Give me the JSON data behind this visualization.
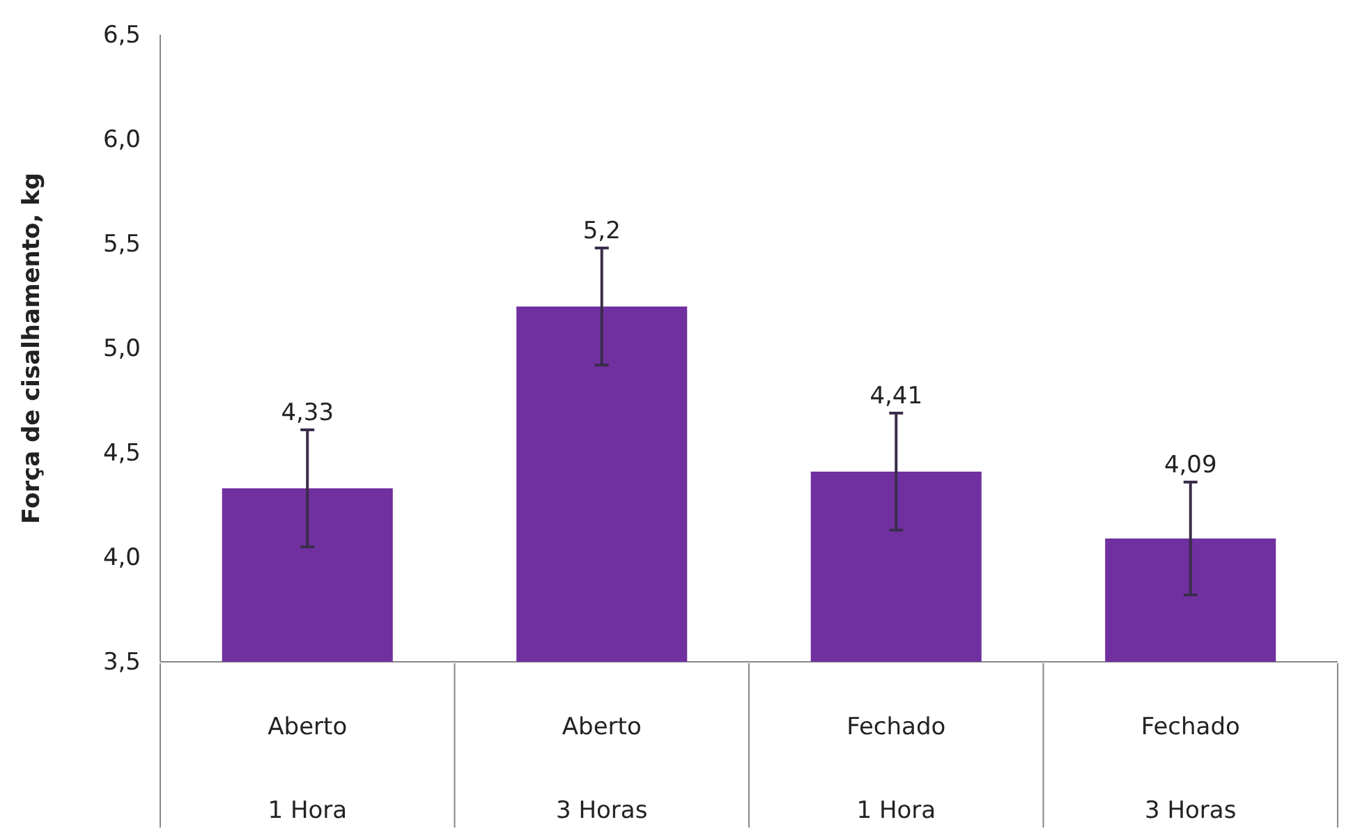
{
  "chart_data": {
    "type": "bar",
    "ylabel": "Força de cisalhamento, kg",
    "categories": [
      "Aberto\n1 Hora",
      "Aberto\n3 Horas",
      "Fechado\n1 Hora",
      "Fechado\n3 Horas"
    ],
    "values": [
      4.33,
      5.2,
      4.41,
      4.09
    ],
    "errors": [
      0.28,
      0.28,
      0.28,
      0.27
    ],
    "value_labels": [
      "4,33",
      "5,2",
      "4,41",
      "4,09"
    ],
    "color": "#7030a0",
    "ylim": [
      3.5,
      6.5
    ],
    "yticks": [
      {
        "value": 3.5,
        "label": "3,5"
      },
      {
        "value": 4.0,
        "label": "4,0"
      },
      {
        "value": 4.5,
        "label": "4,5"
      },
      {
        "value": 5.0,
        "label": "5,0"
      },
      {
        "value": 5.5,
        "label": "5,5"
      },
      {
        "value": 6.0,
        "label": "6,0"
      },
      {
        "value": 6.5,
        "label": "6,5"
      }
    ]
  }
}
